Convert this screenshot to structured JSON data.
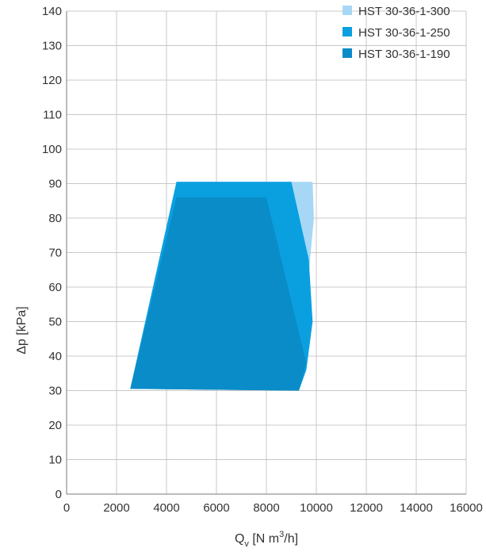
{
  "chart_data": {
    "type": "area",
    "title": "",
    "xlabel": {
      "base": "Q",
      "sub": "v",
      "unit_pre": " [N m",
      "sup": "3",
      "unit_post": "/h]"
    },
    "ylabel": "Δp [kPa]",
    "xlim": [
      0,
      16000
    ],
    "ylim": [
      0,
      140
    ],
    "xticks": [
      0,
      2000,
      4000,
      6000,
      8000,
      10000,
      12000,
      14000,
      16000
    ],
    "xtick_labels": [
      "0",
      "2000",
      "4000",
      "6000",
      "8000",
      "10000",
      "12000",
      "14000",
      "16000"
    ],
    "yticks": [
      0,
      10,
      20,
      30,
      40,
      50,
      60,
      70,
      80,
      90,
      100,
      110,
      120,
      130,
      140
    ],
    "ytick_labels": [
      "0",
      "10",
      "20",
      "30",
      "40",
      "50",
      "60",
      "70",
      "80",
      "90",
      "100",
      "110",
      "120",
      "130",
      "140"
    ],
    "grid": true,
    "legend_position": "top-right",
    "series": [
      {
        "name": "HST 30-36-1-300",
        "color": "#a6d8f5",
        "points": [
          [
            4400,
            90.5
          ],
          [
            9850,
            90.5
          ],
          [
            9900,
            80
          ],
          [
            9750,
            68
          ],
          [
            9500,
            38
          ],
          [
            2550,
            30.5
          ]
        ]
      },
      {
        "name": "HST 30-36-1-250",
        "color": "#0aa0e0",
        "points": [
          [
            4400,
            90.5
          ],
          [
            9000,
            90.5
          ],
          [
            9700,
            68
          ],
          [
            9850,
            50
          ],
          [
            9600,
            36
          ],
          [
            9300,
            30
          ],
          [
            2550,
            30.5
          ]
        ]
      },
      {
        "name": "HST 30-36-1-190",
        "color": "#0a8cc8",
        "points": [
          [
            4400,
            86
          ],
          [
            8000,
            86
          ],
          [
            9600,
            38
          ],
          [
            9300,
            30
          ],
          [
            2550,
            30.5
          ]
        ]
      }
    ]
  }
}
